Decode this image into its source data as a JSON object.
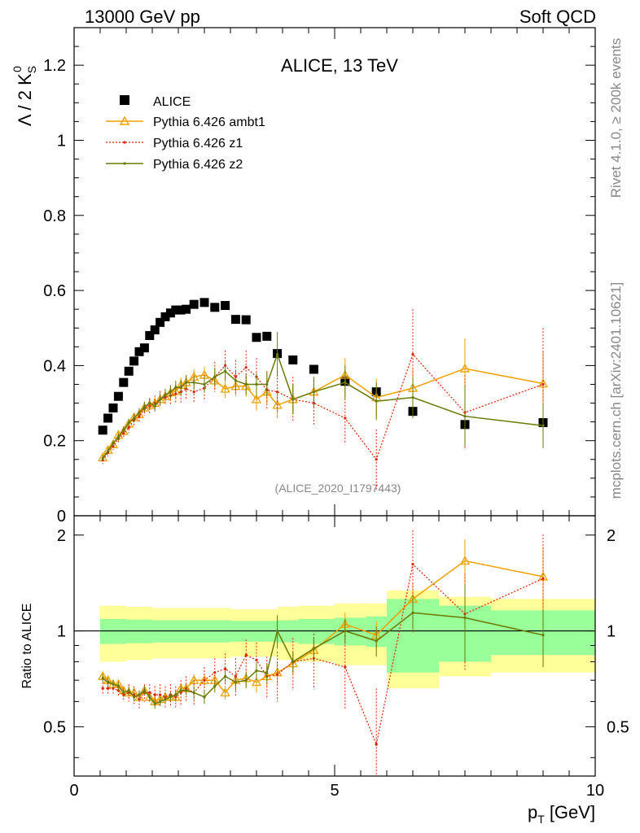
{
  "header": {
    "left": "13000 GeV pp",
    "right": "Soft QCD"
  },
  "side_text": {
    "top": "Rivet 4.1.0, ≥ 200k events",
    "bottom": "mcplots.cern.ch [arXiv:2401.10621]"
  },
  "chart_data": [
    {
      "type": "scatter",
      "title": "ALICE, 13 TeV",
      "annotation": "(ALICE_2020_I1797443)",
      "ylabel_parts": {
        "lambda": "Λ / 2 K",
        "sub": "S",
        "sup": "0"
      },
      "xlabel_parts": {
        "p": "p",
        "sub": "T",
        "unit": "[GeV]"
      },
      "xlim": [
        0,
        10
      ],
      "ylim": [
        0,
        1.3
      ],
      "yticks": [
        0,
        0.2,
        0.4,
        0.6,
        0.8,
        1,
        1.2
      ],
      "yticklabels": [
        "0",
        "0.2",
        "0.4",
        "0.6",
        "0.8",
        "1",
        "1.2"
      ],
      "xticks": [
        0,
        5,
        10
      ],
      "xticklabels": [
        "0",
        "5",
        "10"
      ],
      "legend": [
        {
          "name": "ALICE",
          "color": "#000000",
          "marker": "square"
        },
        {
          "name": "Pythia 6.426 ambt1",
          "color": "#f0a000",
          "marker": "triangle"
        },
        {
          "name": "Pythia 6.426 z1",
          "color": "#e02000",
          "marker": "dot"
        },
        {
          "name": "Pythia 6.426 z2",
          "color": "#6a7a00",
          "marker": "dot"
        }
      ],
      "data": {
        "x": [
          0.55,
          0.65,
          0.75,
          0.85,
          0.95,
          1.05,
          1.15,
          1.25,
          1.35,
          1.45,
          1.55,
          1.65,
          1.75,
          1.85,
          1.95,
          2.05,
          2.15,
          2.3,
          2.5,
          2.7,
          2.9,
          3.1,
          3.3,
          3.5,
          3.7,
          3.9,
          4.2,
          4.6,
          5.2,
          5.8,
          6.5,
          7.5,
          9.0
        ],
        "y": [
          0.228,
          0.26,
          0.287,
          0.318,
          0.355,
          0.385,
          0.412,
          0.437,
          0.447,
          0.48,
          0.495,
          0.515,
          0.53,
          0.54,
          0.548,
          0.548,
          0.55,
          0.563,
          0.568,
          0.555,
          0.56,
          0.523,
          0.522,
          0.475,
          0.478,
          0.432,
          0.415,
          0.39,
          0.358,
          0.33,
          0.278,
          0.243,
          0.248
        ]
      },
      "series": [
        {
          "name": "Pythia 6.426 ambt1",
          "x": [
            0.55,
            0.65,
            0.75,
            0.85,
            0.95,
            1.05,
            1.15,
            1.25,
            1.35,
            1.45,
            1.55,
            1.65,
            1.75,
            1.85,
            1.95,
            2.05,
            2.15,
            2.3,
            2.5,
            2.7,
            2.9,
            3.1,
            3.3,
            3.5,
            3.7,
            3.9,
            4.2,
            4.6,
            5.2,
            5.8,
            6.5,
            7.5,
            9.0
          ],
          "y": [
            0.155,
            0.175,
            0.19,
            0.215,
            0.225,
            0.245,
            0.262,
            0.27,
            0.288,
            0.295,
            0.3,
            0.31,
            0.318,
            0.328,
            0.332,
            0.348,
            0.355,
            0.37,
            0.375,
            0.36,
            0.338,
            0.345,
            0.345,
            0.31,
            0.33,
            0.295,
            0.31,
            0.33,
            0.375,
            0.315,
            0.34,
            0.392,
            0.352
          ],
          "err": [
            0.008,
            0.008,
            0.008,
            0.01,
            0.01,
            0.01,
            0.012,
            0.012,
            0.014,
            0.014,
            0.014,
            0.016,
            0.016,
            0.018,
            0.018,
            0.02,
            0.02,
            0.02,
            0.022,
            0.024,
            0.024,
            0.026,
            0.028,
            0.03,
            0.032,
            0.035,
            0.04,
            0.04,
            0.045,
            0.05,
            0.055,
            0.08,
            0.085
          ]
        },
        {
          "name": "Pythia 6.426 z1",
          "x": [
            0.55,
            0.65,
            0.75,
            0.85,
            0.95,
            1.05,
            1.15,
            1.25,
            1.35,
            1.45,
            1.55,
            1.65,
            1.75,
            1.85,
            1.95,
            2.05,
            2.15,
            2.3,
            2.5,
            2.7,
            2.9,
            3.1,
            3.3,
            3.5,
            3.7,
            3.9,
            4.2,
            4.6,
            5.2,
            5.8,
            6.5,
            7.5,
            9.0
          ],
          "y": [
            0.148,
            0.168,
            0.185,
            0.205,
            0.22,
            0.235,
            0.255,
            0.265,
            0.285,
            0.292,
            0.3,
            0.31,
            0.315,
            0.32,
            0.325,
            0.33,
            0.338,
            0.33,
            0.34,
            0.37,
            0.4,
            0.37,
            0.395,
            0.37,
            0.335,
            0.33,
            0.31,
            0.3,
            0.26,
            0.15,
            0.43,
            0.275,
            0.35
          ],
          "err": [
            0.01,
            0.01,
            0.01,
            0.012,
            0.012,
            0.014,
            0.016,
            0.016,
            0.018,
            0.02,
            0.02,
            0.022,
            0.022,
            0.025,
            0.025,
            0.028,
            0.03,
            0.03,
            0.035,
            0.04,
            0.04,
            0.045,
            0.045,
            0.05,
            0.05,
            0.055,
            0.06,
            0.06,
            0.07,
            0.08,
            0.12,
            0.1,
            0.15
          ]
        },
        {
          "name": "Pythia 6.426 z2",
          "x": [
            0.55,
            0.65,
            0.75,
            0.85,
            0.95,
            1.05,
            1.15,
            1.25,
            1.35,
            1.45,
            1.55,
            1.65,
            1.75,
            1.85,
            1.95,
            2.05,
            2.15,
            2.3,
            2.5,
            2.7,
            2.9,
            3.1,
            3.3,
            3.5,
            3.7,
            3.9,
            4.2,
            4.6,
            5.2,
            5.8,
            6.5,
            7.5,
            9.0
          ],
          "y": [
            0.153,
            0.172,
            0.193,
            0.21,
            0.228,
            0.248,
            0.26,
            0.275,
            0.29,
            0.3,
            0.292,
            0.31,
            0.322,
            0.33,
            0.342,
            0.342,
            0.355,
            0.355,
            0.35,
            0.37,
            0.385,
            0.36,
            0.35,
            0.35,
            0.35,
            0.43,
            0.31,
            0.33,
            0.355,
            0.305,
            0.315,
            0.265,
            0.24
          ],
          "err": [
            0.008,
            0.008,
            0.008,
            0.01,
            0.01,
            0.01,
            0.012,
            0.012,
            0.014,
            0.014,
            0.014,
            0.016,
            0.016,
            0.018,
            0.018,
            0.02,
            0.02,
            0.02,
            0.022,
            0.024,
            0.024,
            0.026,
            0.028,
            0.03,
            0.032,
            0.06,
            0.04,
            0.04,
            0.045,
            0.05,
            0.055,
            0.08,
            0.06
          ]
        }
      ]
    },
    {
      "type": "line",
      "ylabel": "Ratio to ALICE",
      "ylim": [
        0.35,
        2.3
      ],
      "yscale": "log",
      "yticks": [
        0.5,
        1,
        2
      ],
      "yticklabels": [
        "0.5",
        "1",
        "2"
      ],
      "bands": {
        "x_edges": [
          0.5,
          1.0,
          1.5,
          2.0,
          2.5,
          3.0,
          3.5,
          3.9,
          4.3,
          5.0,
          5.6,
          6.0,
          7.0,
          8.0,
          10.0
        ],
        "stat_half_width": [
          0.09,
          0.085,
          0.08,
          0.08,
          0.08,
          0.075,
          0.075,
          0.08,
          0.09,
          0.1,
          0.11,
          0.26,
          0.2,
          0.16,
          0.16
        ],
        "total_half_width": [
          0.2,
          0.19,
          0.18,
          0.18,
          0.18,
          0.17,
          0.17,
          0.19,
          0.2,
          0.22,
          0.22,
          0.34,
          0.28,
          0.26,
          0.26
        ]
      },
      "series": [
        {
          "name": "Pythia 6.426 ambt1",
          "x": [
            0.55,
            0.65,
            0.75,
            0.85,
            0.95,
            1.05,
            1.15,
            1.25,
            1.35,
            1.45,
            1.55,
            1.65,
            1.75,
            1.85,
            1.95,
            2.05,
            2.15,
            2.3,
            2.5,
            2.7,
            2.9,
            3.1,
            3.3,
            3.5,
            3.7,
            3.9,
            4.2,
            4.6,
            5.2,
            5.8,
            6.5,
            7.5,
            9.0
          ],
          "y": [
            0.72,
            0.7,
            0.68,
            0.68,
            0.65,
            0.64,
            0.64,
            0.62,
            0.65,
            0.62,
            0.6,
            0.61,
            0.62,
            0.62,
            0.62,
            0.66,
            0.66,
            0.7,
            0.7,
            0.7,
            0.64,
            0.7,
            0.71,
            0.69,
            0.72,
            0.74,
            0.79,
            0.87,
            1.05,
            0.97,
            1.26,
            1.66,
            1.48
          ],
          "err": [
            0.02,
            0.02,
            0.02,
            0.02,
            0.02,
            0.02,
            0.02,
            0.02,
            0.02,
            0.02,
            0.02,
            0.02,
            0.02,
            0.02,
            0.02,
            0.02,
            0.02,
            0.03,
            0.03,
            0.03,
            0.03,
            0.04,
            0.04,
            0.05,
            0.05,
            0.06,
            0.06,
            0.07,
            0.09,
            0.1,
            0.15,
            0.28,
            0.36
          ]
        },
        {
          "name": "Pythia 6.426 z1",
          "x": [
            0.55,
            0.65,
            0.75,
            0.85,
            0.95,
            1.05,
            1.15,
            1.25,
            1.35,
            1.45,
            1.55,
            1.65,
            1.75,
            1.85,
            1.95,
            2.05,
            2.15,
            2.3,
            2.5,
            2.7,
            2.9,
            3.1,
            3.3,
            3.5,
            3.7,
            3.9,
            4.2,
            4.6,
            5.2,
            5.8,
            6.5,
            7.5,
            9.0
          ],
          "y": [
            0.66,
            0.66,
            0.66,
            0.65,
            0.63,
            0.64,
            0.63,
            0.61,
            0.64,
            0.64,
            0.63,
            0.63,
            0.62,
            0.63,
            0.62,
            0.64,
            0.66,
            0.64,
            0.7,
            0.74,
            0.76,
            0.72,
            0.84,
            0.81,
            0.72,
            0.73,
            0.8,
            0.82,
            0.77,
            0.44,
            1.62,
            1.13,
            1.46
          ],
          "err": [
            0.03,
            0.03,
            0.03,
            0.03,
            0.03,
            0.04,
            0.04,
            0.04,
            0.04,
            0.04,
            0.04,
            0.05,
            0.05,
            0.05,
            0.05,
            0.06,
            0.06,
            0.06,
            0.07,
            0.08,
            0.09,
            0.1,
            0.1,
            0.11,
            0.11,
            0.13,
            0.15,
            0.16,
            0.2,
            0.22,
            0.45,
            0.38,
            0.55
          ]
        },
        {
          "name": "Pythia 6.426 z2",
          "x": [
            0.55,
            0.65,
            0.75,
            0.85,
            0.95,
            1.05,
            1.15,
            1.25,
            1.35,
            1.45,
            1.55,
            1.65,
            1.75,
            1.85,
            1.95,
            2.05,
            2.15,
            2.3,
            2.5,
            2.7,
            2.9,
            3.1,
            3.3,
            3.5,
            3.7,
            3.9,
            4.2,
            4.6,
            5.2,
            5.8,
            6.5,
            7.5,
            9.0
          ],
          "y": [
            0.71,
            0.69,
            0.68,
            0.67,
            0.64,
            0.65,
            0.62,
            0.63,
            0.65,
            0.62,
            0.59,
            0.6,
            0.61,
            0.62,
            0.63,
            0.65,
            0.65,
            0.64,
            0.62,
            0.67,
            0.72,
            0.69,
            0.7,
            0.75,
            0.74,
            1.0,
            0.8,
            0.88,
            1.0,
            0.93,
            1.14,
            1.1,
            0.97
          ],
          "err": [
            0.02,
            0.02,
            0.02,
            0.02,
            0.02,
            0.02,
            0.02,
            0.02,
            0.02,
            0.02,
            0.02,
            0.02,
            0.02,
            0.02,
            0.02,
            0.02,
            0.02,
            0.03,
            0.03,
            0.03,
            0.03,
            0.04,
            0.04,
            0.05,
            0.05,
            0.12,
            0.06,
            0.07,
            0.09,
            0.1,
            0.15,
            0.3,
            0.2
          ]
        }
      ]
    }
  ]
}
